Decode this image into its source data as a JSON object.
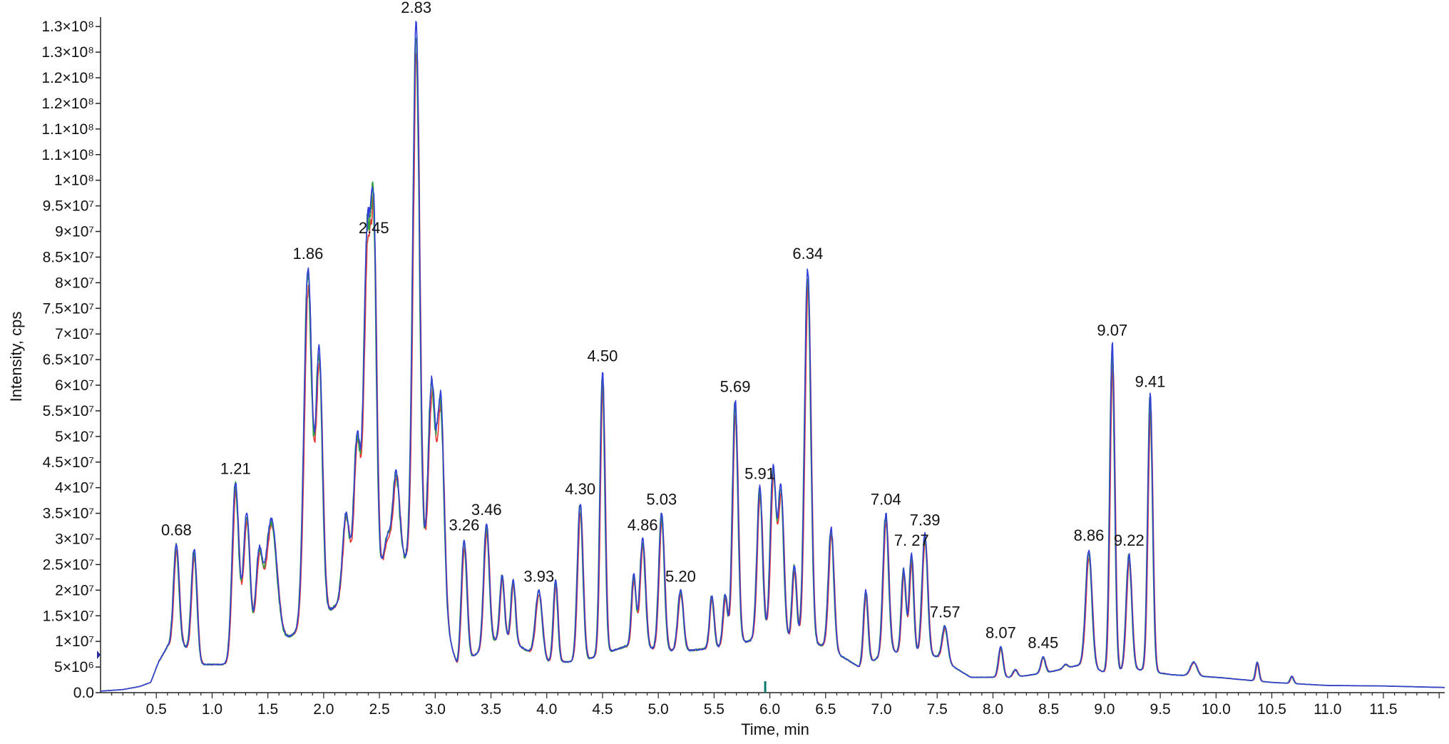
{
  "chart_data": {
    "type": "line",
    "title": "",
    "xlabel": "Time, min",
    "ylabel": "Intensity, cps",
    "xlim": [
      0,
      12.05
    ],
    "ylim": [
      0,
      131000000
    ],
    "grid": false,
    "legend": "none",
    "x_ticks": [
      {
        "v": 0.5,
        "label": "0.5"
      },
      {
        "v": 1.0,
        "label": "1.0"
      },
      {
        "v": 1.5,
        "label": "1.5"
      },
      {
        "v": 2.0,
        "label": "2.0"
      },
      {
        "v": 2.5,
        "label": "2.5"
      },
      {
        "v": 3.0,
        "label": "3.0"
      },
      {
        "v": 3.5,
        "label": "3.5"
      },
      {
        "v": 4.0,
        "label": "4.0"
      },
      {
        "v": 4.5,
        "label": "4.5"
      },
      {
        "v": 5.0,
        "label": "5.0"
      },
      {
        "v": 5.5,
        "label": "5.5"
      },
      {
        "v": 6.0,
        "label": "6.0"
      },
      {
        "v": 6.5,
        "label": "6.5"
      },
      {
        "v": 7.0,
        "label": "7.0"
      },
      {
        "v": 7.5,
        "label": "7.5"
      },
      {
        "v": 8.0,
        "label": "8.0"
      },
      {
        "v": 8.5,
        "label": "8.5"
      },
      {
        "v": 9.0,
        "label": "9.0"
      },
      {
        "v": 9.5,
        "label": "9.5"
      },
      {
        "v": 10.0,
        "label": "10.0"
      },
      {
        "v": 10.5,
        "label": "10.5"
      },
      {
        "v": 11.0,
        "label": "11.0"
      },
      {
        "v": 11.5,
        "label": "11.5"
      }
    ],
    "y_ticks": [
      {
        "v": 0,
        "label": "0.0"
      },
      {
        "v": 5000000,
        "label": "5×10⁶"
      },
      {
        "v": 10000000,
        "label": "1×10⁷"
      },
      {
        "v": 15000000,
        "label": "1.5×10⁷"
      },
      {
        "v": 20000000,
        "label": "2×10⁷"
      },
      {
        "v": 25000000,
        "label": "2.5×10⁷"
      },
      {
        "v": 30000000,
        "label": "3×10⁷"
      },
      {
        "v": 35000000,
        "label": "3.5×10⁷"
      },
      {
        "v": 40000000,
        "label": "4×10⁷"
      },
      {
        "v": 45000000,
        "label": "4.5×10⁷"
      },
      {
        "v": 50000000,
        "label": "5×10⁷"
      },
      {
        "v": 55000000,
        "label": "5.5×10⁷"
      },
      {
        "v": 60000000,
        "label": "6×10⁷"
      },
      {
        "v": 65000000,
        "label": "6.5×10⁷"
      },
      {
        "v": 70000000,
        "label": "7×10⁷"
      },
      {
        "v": 75000000,
        "label": "7.5×10⁷"
      },
      {
        "v": 80000000,
        "label": "8×10⁷"
      },
      {
        "v": 85000000,
        "label": "8.5×10⁷"
      },
      {
        "v": 90000000,
        "label": "9×10⁷"
      },
      {
        "v": 95000000,
        "label": "9.5×10⁷"
      },
      {
        "v": 100000000,
        "label": "1×10⁸"
      },
      {
        "v": 105000000,
        "label": "1.1×10⁸"
      },
      {
        "v": 110000000,
        "label": "1.1×10⁸"
      },
      {
        "v": 115000000,
        "label": "1.2×10⁸"
      },
      {
        "v": 120000000,
        "label": "1.2×10⁸"
      },
      {
        "v": 125000000,
        "label": "1.3×10⁸"
      },
      {
        "v": 130000000,
        "label": "1.3×10⁸"
      }
    ],
    "baseline": [
      [
        0.0,
        300000
      ],
      [
        0.2,
        600000
      ],
      [
        0.35,
        1200000
      ],
      [
        0.45,
        2000000
      ],
      [
        0.52,
        6000000
      ],
      [
        0.6,
        9000000
      ],
      [
        0.75,
        9000000
      ],
      [
        0.9,
        5500000
      ],
      [
        1.15,
        5500000
      ],
      [
        1.7,
        11000000
      ],
      [
        2.05,
        16000000
      ],
      [
        2.3,
        20000000
      ],
      [
        2.7,
        26000000
      ],
      [
        2.95,
        24000000
      ],
      [
        3.2,
        5000000
      ],
      [
        3.6,
        11000000
      ],
      [
        4.0,
        6000000
      ],
      [
        4.3,
        6000000
      ],
      [
        4.7,
        9000000
      ],
      [
        5.2,
        8000000
      ],
      [
        5.6,
        9000000
      ],
      [
        6.0,
        11000000
      ],
      [
        6.3,
        10000000
      ],
      [
        6.5,
        9000000
      ],
      [
        6.8,
        5000000
      ],
      [
        7.1,
        8000000
      ],
      [
        7.5,
        7000000
      ],
      [
        7.8,
        3000000
      ],
      [
        8.2,
        3000000
      ],
      [
        8.5,
        4000000
      ],
      [
        8.8,
        5500000
      ],
      [
        9.0,
        4000000
      ],
      [
        9.3,
        4500000
      ],
      [
        9.6,
        3500000
      ],
      [
        10.0,
        3000000
      ],
      [
        10.5,
        2000000
      ],
      [
        11.0,
        1400000
      ],
      [
        11.5,
        1300000
      ],
      [
        12.05,
        1000000
      ]
    ],
    "peaks": [
      {
        "x": 0.68,
        "y": 29000000,
        "w": 0.025,
        "label": "0.68"
      },
      {
        "x": 0.84,
        "y": 28000000,
        "w": 0.025
      },
      {
        "x": 1.21,
        "y": 41000000,
        "w": 0.03,
        "label": "1.21"
      },
      {
        "x": 1.31,
        "y": 35000000,
        "w": 0.03
      },
      {
        "x": 1.42,
        "y": 26000000,
        "w": 0.03
      },
      {
        "x": 1.53,
        "y": 34000000,
        "w": 0.05
      },
      {
        "x": 1.86,
        "y": 83000000,
        "w": 0.035,
        "label": "1.86"
      },
      {
        "x": 1.96,
        "y": 66000000,
        "w": 0.03
      },
      {
        "x": 2.2,
        "y": 35000000,
        "w": 0.03
      },
      {
        "x": 2.3,
        "y": 50000000,
        "w": 0.03
      },
      {
        "x": 2.39,
        "y": 88000000,
        "w": 0.03
      },
      {
        "x": 2.45,
        "y": 88000000,
        "w": 0.025,
        "label": "2.45"
      },
      {
        "x": 2.57,
        "y": 30000000,
        "w": 0.03
      },
      {
        "x": 2.65,
        "y": 43000000,
        "w": 0.03
      },
      {
        "x": 2.83,
        "y": 131000000,
        "w": 0.03,
        "label": "2.83"
      },
      {
        "x": 2.97,
        "y": 60000000,
        "w": 0.03
      },
      {
        "x": 3.05,
        "y": 57000000,
        "w": 0.03
      },
      {
        "x": 3.26,
        "y": 30000000,
        "w": 0.025,
        "label": "3.26"
      },
      {
        "x": 3.46,
        "y": 33000000,
        "w": 0.025,
        "label": "3.46"
      },
      {
        "x": 3.6,
        "y": 23000000,
        "w": 0.02
      },
      {
        "x": 3.7,
        "y": 22000000,
        "w": 0.02
      },
      {
        "x": 3.93,
        "y": 20000000,
        "w": 0.03,
        "label": "3.93"
      },
      {
        "x": 4.08,
        "y": 22000000,
        "w": 0.02
      },
      {
        "x": 4.3,
        "y": 37000000,
        "w": 0.025,
        "label": "4.30"
      },
      {
        "x": 4.5,
        "y": 63000000,
        "w": 0.022,
        "label": "4.50"
      },
      {
        "x": 4.78,
        "y": 23000000,
        "w": 0.02
      },
      {
        "x": 4.86,
        "y": 30000000,
        "w": 0.025,
        "label": "4.86"
      },
      {
        "x": 5.03,
        "y": 35000000,
        "w": 0.025,
        "label": "5.03"
      },
      {
        "x": 5.2,
        "y": 20000000,
        "w": 0.025,
        "label": "5.20"
      },
      {
        "x": 5.48,
        "y": 19000000,
        "w": 0.02
      },
      {
        "x": 5.6,
        "y": 19000000,
        "w": 0.02
      },
      {
        "x": 5.69,
        "y": 57000000,
        "w": 0.025,
        "label": "5.69"
      },
      {
        "x": 5.91,
        "y": 40000000,
        "w": 0.025,
        "label": "5.91"
      },
      {
        "x": 6.03,
        "y": 44000000,
        "w": 0.025
      },
      {
        "x": 6.1,
        "y": 40000000,
        "w": 0.025
      },
      {
        "x": 6.22,
        "y": 25000000,
        "w": 0.02
      },
      {
        "x": 6.34,
        "y": 83000000,
        "w": 0.028,
        "label": "6.34"
      },
      {
        "x": 6.55,
        "y": 32000000,
        "w": 0.025
      },
      {
        "x": 6.86,
        "y": 20000000,
        "w": 0.02
      },
      {
        "x": 7.04,
        "y": 35000000,
        "w": 0.025,
        "label": "7.04"
      },
      {
        "x": 7.2,
        "y": 24000000,
        "w": 0.02
      },
      {
        "x": 7.27,
        "y": 27000000,
        "w": 0.02,
        "label": "7. 27"
      },
      {
        "x": 7.39,
        "y": 31000000,
        "w": 0.025,
        "label": "7.39"
      },
      {
        "x": 7.57,
        "y": 13000000,
        "w": 0.025,
        "label": "7.57"
      },
      {
        "x": 8.07,
        "y": 9000000,
        "w": 0.02,
        "label": "8.07"
      },
      {
        "x": 8.2,
        "y": 4500000,
        "w": 0.02
      },
      {
        "x": 8.45,
        "y": 7000000,
        "w": 0.02,
        "label": "8.45"
      },
      {
        "x": 8.65,
        "y": 5500000,
        "w": 0.02
      },
      {
        "x": 8.86,
        "y": 28000000,
        "w": 0.028,
        "label": "8.86"
      },
      {
        "x": 9.07,
        "y": 68000000,
        "w": 0.022,
        "label": "9.07"
      },
      {
        "x": 9.22,
        "y": 27000000,
        "w": 0.025,
        "label": "9.22"
      },
      {
        "x": 9.41,
        "y": 58000000,
        "w": 0.022,
        "label": "9.41"
      },
      {
        "x": 9.8,
        "y": 6000000,
        "w": 0.03
      },
      {
        "x": 10.37,
        "y": 6000000,
        "w": 0.015
      },
      {
        "x": 10.68,
        "y": 3200000,
        "w": 0.015
      }
    ],
    "series": [
      {
        "color": "#e53935",
        "scale": 0.95,
        "shift": 0.004,
        "noise": 0.035
      },
      {
        "color": "#2e9e3e",
        "scale": 0.98,
        "shift": -0.003,
        "noise": 0.045
      },
      {
        "color": "#3340d8",
        "scale": 1.0,
        "shift": 0.0,
        "noise": 0.03
      }
    ],
    "markers": {
      "left_marker_color": "#2a2aa0",
      "x_marker_color": "#0a7a6a",
      "x_marker_value": 6.0
    }
  }
}
